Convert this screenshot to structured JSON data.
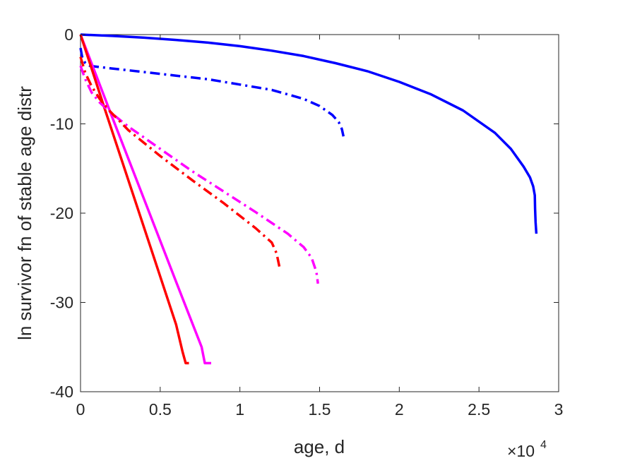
{
  "chart_data": {
    "type": "line",
    "xlabel": "age, d",
    "ylabel": "ln survivor fn of stable age distr",
    "x_multiplier": {
      "base": "×10",
      "exponent": "4"
    },
    "xlim": [
      0,
      3
    ],
    "ylim": [
      -40,
      0
    ],
    "xticks": [
      0,
      0.5,
      1,
      1.5,
      2,
      2.5,
      3
    ],
    "xtick_labels": [
      "0",
      "0.5",
      "1",
      "1.5",
      "2",
      "2.5",
      "3"
    ],
    "yticks": [
      0,
      -10,
      -20,
      -30,
      -40
    ],
    "ytick_labels": [
      "0",
      "-10",
      "-20",
      "-30",
      "-40"
    ],
    "grid": false,
    "series": [
      {
        "color": "#0000ff",
        "style": "solid",
        "x": [
          0,
          0.2,
          0.4,
          0.6,
          0.8,
          1.0,
          1.2,
          1.4,
          1.6,
          1.8,
          2.0,
          2.2,
          2.4,
          2.6,
          2.7,
          2.78,
          2.82,
          2.84,
          2.85,
          2.852,
          2.855,
          2.86
        ],
        "y": [
          0,
          -0.15,
          -0.35,
          -0.6,
          -0.9,
          -1.3,
          -1.8,
          -2.4,
          -3.2,
          -4.1,
          -5.3,
          -6.7,
          -8.5,
          -11.0,
          -12.8,
          -14.8,
          -16.0,
          -17.0,
          -18.0,
          -19.5,
          -21.0,
          -22.3
        ]
      },
      {
        "color": "#0000ff",
        "style": "dashdot",
        "x": [
          0,
          0.01,
          0.03,
          0.06,
          0.1,
          0.2,
          0.4,
          0.6,
          0.8,
          1.0,
          1.2,
          1.4,
          1.5,
          1.58,
          1.62,
          1.64,
          1.65
        ],
        "y": [
          -1.5,
          -2.5,
          -3.2,
          -3.5,
          -3.6,
          -3.8,
          -4.2,
          -4.6,
          -5.0,
          -5.6,
          -6.2,
          -7.2,
          -8.0,
          -9.0,
          -9.8,
          -10.6,
          -11.4
        ]
      },
      {
        "color": "#ff00ff",
        "style": "solid",
        "x": [
          0,
          0.2,
          0.4,
          0.6,
          0.76,
          0.78,
          0.8,
          0.82
        ],
        "y": [
          0,
          -9.3,
          -18.5,
          -27.7,
          -35.0,
          -36.8,
          -36.8,
          -36.8
        ]
      },
      {
        "color": "#ff0000",
        "style": "solid",
        "x": [
          0,
          0.15,
          0.3,
          0.45,
          0.6,
          0.64,
          0.66,
          0.68
        ],
        "y": [
          0,
          -8.2,
          -16.3,
          -24.4,
          -32.5,
          -35.5,
          -36.8,
          -36.8
        ]
      },
      {
        "color": "#ff00ff",
        "style": "dashdot",
        "x": [
          0,
          0.03,
          0.07,
          0.12,
          0.18,
          0.3,
          0.5,
          0.7,
          0.9,
          1.1,
          1.3,
          1.4,
          1.45,
          1.48,
          1.49
        ],
        "y": [
          -3.5,
          -5.0,
          -6.5,
          -7.6,
          -8.6,
          -10.3,
          -12.8,
          -15.3,
          -17.6,
          -19.9,
          -22.3,
          -23.8,
          -25.0,
          -26.6,
          -27.9
        ]
      },
      {
        "color": "#ff0000",
        "style": "dashdot",
        "x": [
          0,
          0.03,
          0.07,
          0.12,
          0.18,
          0.3,
          0.5,
          0.7,
          0.9,
          1.1,
          1.2,
          1.23,
          1.25
        ],
        "y": [
          -2.5,
          -4.3,
          -5.8,
          -7.2,
          -8.5,
          -10.7,
          -13.6,
          -16.3,
          -18.9,
          -21.7,
          -23.3,
          -24.5,
          -26.2
        ]
      }
    ]
  }
}
